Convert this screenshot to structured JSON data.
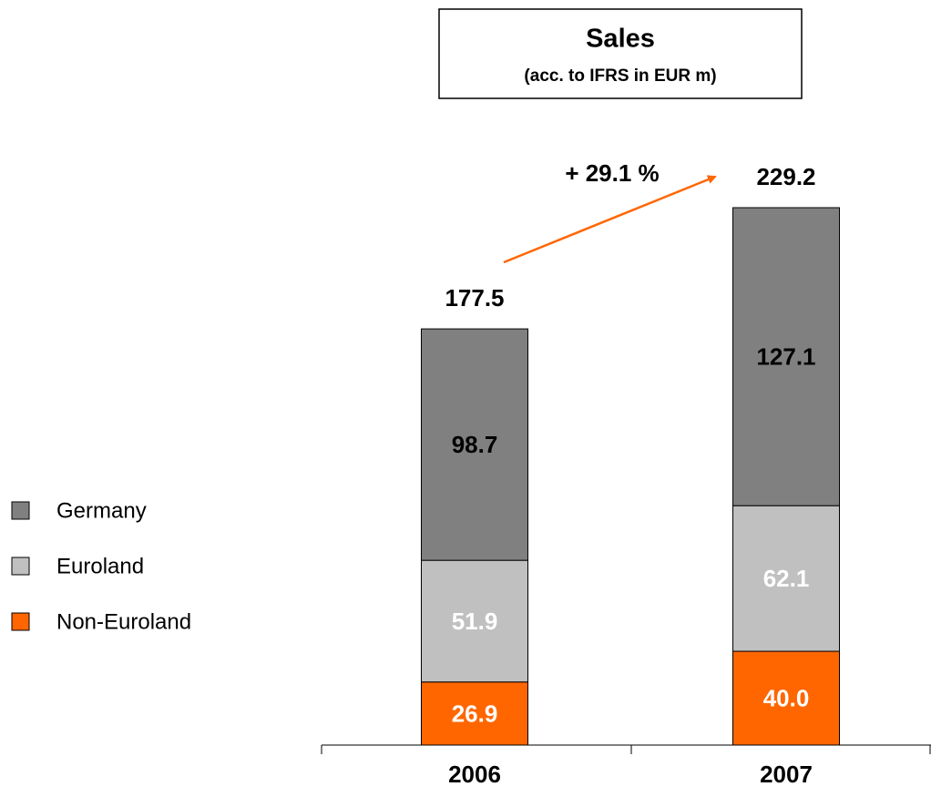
{
  "chart_data": {
    "type": "stacked_bar",
    "title": "Sales",
    "subtitle": "(acc. to IFRS in EUR m)",
    "categories": [
      "2006",
      "2007"
    ],
    "series": [
      {
        "name": "Non-Euroland",
        "color": "#ff6600",
        "label_color": "#ffffff",
        "values": [
          26.9,
          40.0
        ],
        "value_labels": [
          "26.9",
          "40.0"
        ]
      },
      {
        "name": "Euroland",
        "color": "#c0c0c0",
        "label_color": "#ffffff",
        "values": [
          51.9,
          62.1
        ]
      },
      {
        "name": "Germany",
        "color": "#808080",
        "label_color": "#000000",
        "values": [
          98.7,
          127.1
        ]
      }
    ],
    "totals": [
      177.5,
      229.2
    ],
    "annotation": "+ 29.1 %",
    "annotation_color": "#ff6600"
  }
}
